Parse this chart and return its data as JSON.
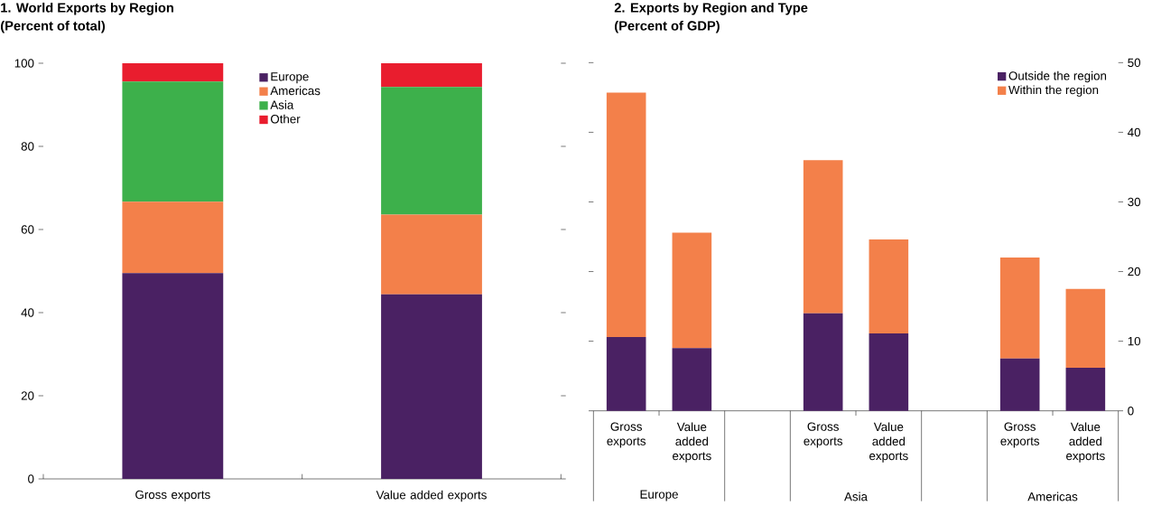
{
  "chart_data": [
    {
      "type": "bar",
      "title": "1. World Exports by Region",
      "subtitle": "(Percent of total)",
      "stacked": true,
      "legend": "top",
      "categories": [
        "Gross exports",
        "Value added exports"
      ],
      "ylim": [
        0,
        100
      ],
      "yticks": [
        0,
        20,
        40,
        60,
        80,
        100
      ],
      "series": [
        {
          "name": "Europe",
          "color": "#4a2163",
          "values": [
            49.5,
            44.4
          ]
        },
        {
          "name": "Americas",
          "color": "#f3804a",
          "values": [
            17.2,
            19.2
          ]
        },
        {
          "name": "Asia",
          "color": "#3db04b",
          "values": [
            28.9,
            30.7
          ]
        },
        {
          "name": "Other",
          "color": "#e91d2e",
          "values": [
            4.4,
            5.7
          ]
        }
      ]
    },
    {
      "type": "bar",
      "title": "2. Exports by Region and Type",
      "subtitle": "(Percent of GDP)",
      "stacked": true,
      "legend": "top right",
      "categories": [
        "Gross exports",
        "Value added exports",
        null,
        "Gross exports",
        "Value added exports",
        null,
        "Gross exports",
        "Value added exports"
      ],
      "y2lim": [
        0,
        50
      ],
      "y2ticks": [
        0,
        10,
        20,
        30,
        40,
        50
      ],
      "annotations": [
        "Europe",
        "Asia",
        "Americas"
      ],
      "series": [
        {
          "name": "Outside the region",
          "color": "#4a2163",
          "axis": "y2",
          "values": [
            10.6,
            9.0,
            null,
            14.0,
            11.1,
            null,
            7.5,
            6.2
          ]
        },
        {
          "name": "Within the region",
          "color": "#f3804a",
          "axis": "y2",
          "values": [
            35.1,
            16.6,
            null,
            22.0,
            13.5,
            null,
            14.5,
            11.3
          ]
        }
      ]
    }
  ]
}
